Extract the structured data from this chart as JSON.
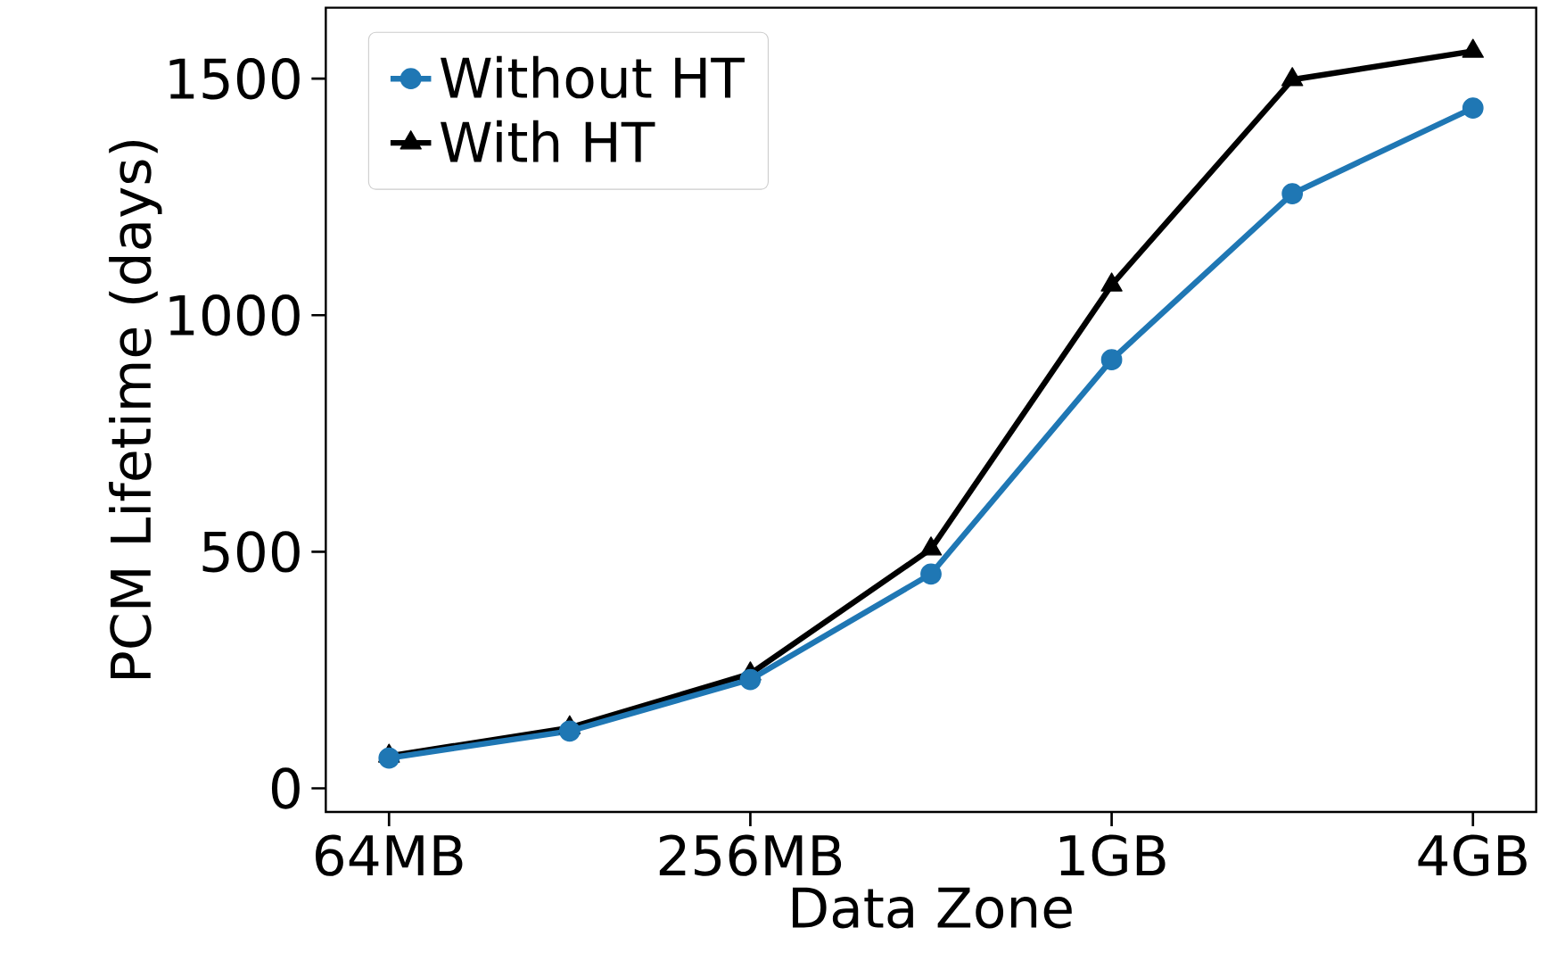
{
  "chart_data": {
    "type": "line",
    "xlabel": "Data Zone",
    "ylabel": "PCM Lifetime (days)",
    "categories": [
      "64MB",
      null,
      "256MB",
      null,
      "1GB",
      null,
      "4GB"
    ],
    "ylim": [
      -50,
      1650
    ],
    "yticks": [
      0,
      500,
      1000,
      1500
    ],
    "legend": "top left",
    "series": [
      {
        "name": "Without HT",
        "color": "#1f77b4",
        "marker": "circle",
        "values": [
          64,
          121,
          230,
          453,
          906,
          1257,
          1438
        ]
      },
      {
        "name": "With HT",
        "color": "#000000",
        "marker": "triangle",
        "values": [
          68,
          128,
          242,
          506,
          1064,
          1498,
          1558
        ]
      }
    ]
  }
}
